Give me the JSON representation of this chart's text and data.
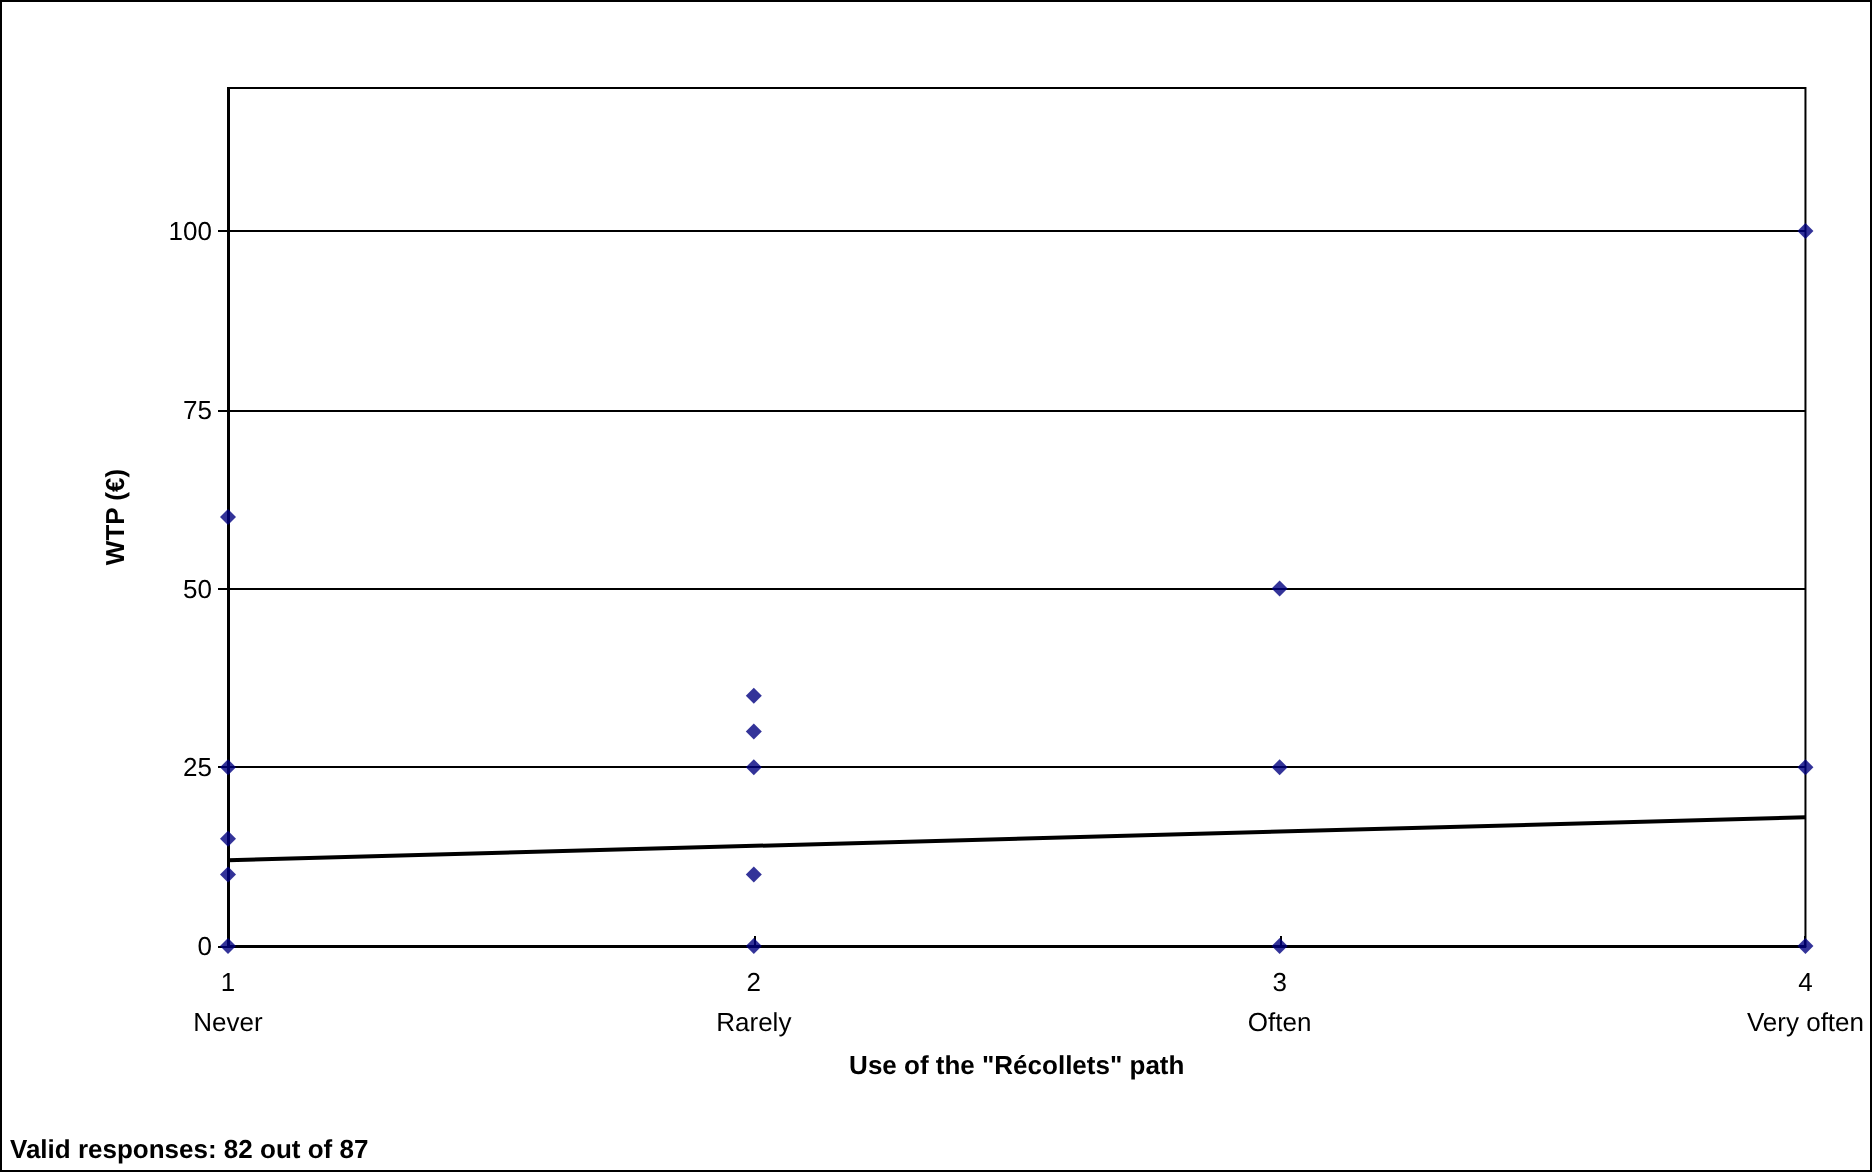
{
  "chart_data": {
    "type": "scatter",
    "xlabel": "Use of the \"Récollets\" path",
    "ylabel": "WTP (€)",
    "annotations": [
      "Valid responses: 82 out of 87"
    ],
    "series": [
      {
        "color": "#000080",
        "marker": "diamond",
        "x": [
          1,
          1,
          1,
          1,
          1,
          2,
          2,
          2,
          2,
          2,
          3,
          3,
          3,
          4,
          4,
          4
        ],
        "values": [
          0,
          10,
          15,
          25,
          60,
          0,
          10,
          25,
          30,
          35,
          0,
          25,
          50,
          0,
          25,
          100
        ]
      },
      {
        "type": "line",
        "color": "#000000",
        "marker": "none",
        "x": [
          1,
          4
        ],
        "values": [
          12,
          18
        ]
      }
    ],
    "xlim": [
      1,
      4
    ],
    "xticks": [
      {
        "value": 1,
        "label": "1\nNever"
      },
      {
        "value": 2,
        "label": "2\nRarely"
      },
      {
        "value": 3,
        "label": "3\nOften"
      },
      {
        "value": 4,
        "label": "4\nVery often"
      }
    ],
    "ylim": [
      0,
      120
    ],
    "yticks": [
      0,
      25,
      50,
      75,
      100
    ],
    "grid": "y"
  }
}
